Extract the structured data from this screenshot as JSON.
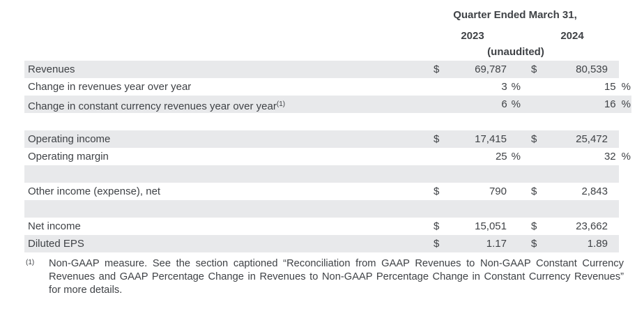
{
  "header": {
    "period_label": "Quarter Ended March 31,",
    "years": [
      "2023",
      "2024"
    ],
    "unaudited_label": "(unaudited)"
  },
  "table": {
    "currency_symbol": "$",
    "percent_symbol": "%",
    "rows": [
      {
        "label": "Revenues",
        "type": "currency",
        "values": [
          "69,787",
          "80,539"
        ],
        "shaded": true
      },
      {
        "label": "Change in revenues year over year",
        "type": "percent",
        "values": [
          "3",
          "15"
        ],
        "shaded": false
      },
      {
        "label": "Change in constant currency revenues year over year",
        "footnote_ref": "(1)",
        "type": "percent",
        "values": [
          "6",
          "16"
        ],
        "shaded": true
      },
      {
        "type": "spacer",
        "shaded": false
      },
      {
        "label": "Operating income",
        "type": "currency",
        "values": [
          "17,415",
          "25,472"
        ],
        "shaded": true
      },
      {
        "label": "Operating margin",
        "type": "percent",
        "values": [
          "25",
          "32"
        ],
        "shaded": false
      },
      {
        "type": "spacer",
        "shaded": true
      },
      {
        "label": "Other income (expense), net",
        "type": "currency",
        "values": [
          "790",
          "2,843"
        ],
        "shaded": false
      },
      {
        "type": "spacer",
        "shaded": true
      },
      {
        "label": "Net income",
        "type": "currency",
        "values": [
          "15,051",
          "23,662"
        ],
        "shaded": false
      },
      {
        "label": "Diluted EPS",
        "type": "currency",
        "values": [
          "1.17",
          "1.89"
        ],
        "shaded": true
      }
    ]
  },
  "footnote": {
    "ref": "(1)",
    "text": "Non-GAAP measure. See the section captioned “Reconciliation from GAAP Revenues to Non-GAAP Constant Currency Revenues and GAAP Percentage Change in Revenues to Non-GAAP Percentage Change in Constant Currency Revenues” for more details."
  },
  "colors": {
    "row_shade": "#e8e9eb",
    "text": "#3f4246",
    "background": "#ffffff"
  }
}
